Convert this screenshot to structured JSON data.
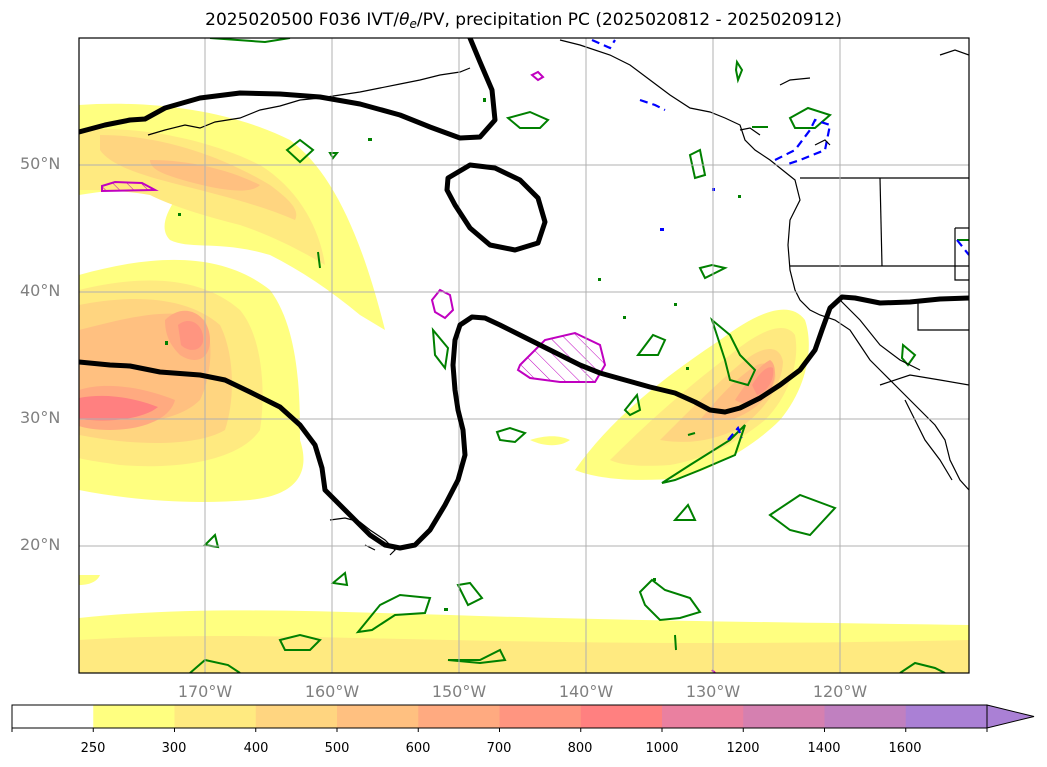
{
  "title": {
    "prefix": "2025020500 F036 IVT/",
    "theta": "θ",
    "sub": "e",
    "suffix": "/PV, precipitation PC (2025020812 - 2025020912)"
  },
  "map": {
    "lat_labels": [
      "50°N",
      "40°N",
      "30°N",
      "20°N"
    ],
    "lon_labels": [
      "170°W",
      "160°W",
      "150°W",
      "140°W",
      "130°W",
      "120°W"
    ],
    "projection_extent": {
      "lon_min": -180,
      "lon_max": -110,
      "lat_min": 10,
      "lat_max": 60
    }
  },
  "colorbar": {
    "levels": [
      "250",
      "300",
      "400",
      "500",
      "600",
      "700",
      "800",
      "1000",
      "1200",
      "1400",
      "1600"
    ],
    "colors": [
      "#ffffff",
      "#ffff80",
      "#ffea80",
      "#ffd580",
      "#ffc080",
      "#ffaa80",
      "#ff9580",
      "#ff8080",
      "#ea80a0",
      "#d580b0",
      "#c080c0",
      "#aa80d5"
    ],
    "extend": "max"
  },
  "legend_colors": {
    "pv_contour": "#000000",
    "theta_positive": "#008000",
    "theta_negative": "#0000ff",
    "precip_pc": "#c000c0"
  }
}
